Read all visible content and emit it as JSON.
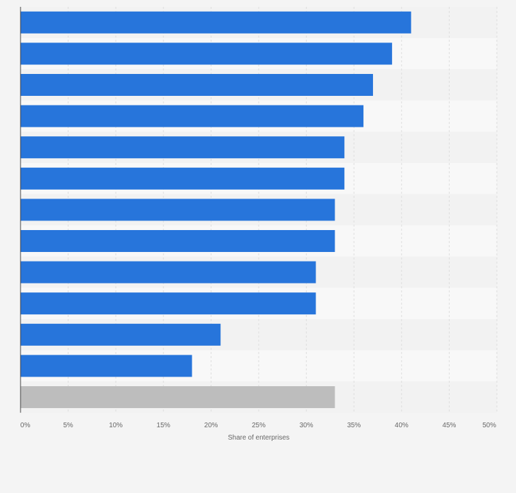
{
  "chart_data": {
    "type": "bar",
    "orientation": "horizontal",
    "categories": [
      "",
      "",
      "",
      "",
      "",
      "",
      "",
      "",
      "",
      "",
      "",
      "",
      ""
    ],
    "values": [
      41,
      39,
      37,
      36,
      34,
      34,
      33,
      33,
      31,
      31,
      21,
      18,
      33
    ],
    "bar_colors": [
      "#2775db",
      "#2775db",
      "#2775db",
      "#2775db",
      "#2775db",
      "#2775db",
      "#2775db",
      "#2775db",
      "#2775db",
      "#2775db",
      "#2775db",
      "#2775db",
      "#bdbdbd"
    ],
    "xlabel": "Share of enterprises",
    "ylabel": "",
    "xlim": [
      0,
      50
    ],
    "x_ticks": [
      "0%",
      "5%",
      "10%",
      "15%",
      "20%",
      "25%",
      "30%",
      "35%",
      "40%",
      "45%",
      "50%"
    ],
    "grid": true,
    "legend": "none"
  },
  "colors": {
    "bar": "#2775db",
    "highlight_bar": "#bdbdbd",
    "background": "#f4f4f4",
    "band_light": "#f8f8f8",
    "band_dark": "#f2f2f2",
    "gridline": "#dddddd",
    "axis": "#444444"
  }
}
